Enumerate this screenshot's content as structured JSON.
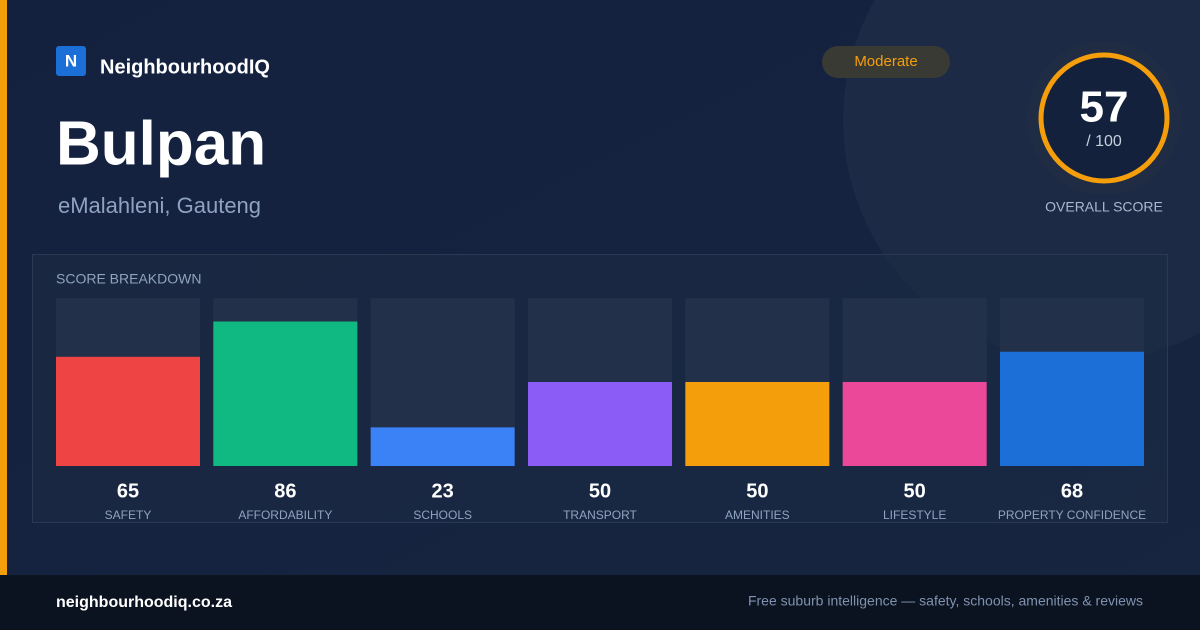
{
  "header": {
    "logo_letter": "N",
    "brand": "NeighbourhoodIQ",
    "title": "Bulpan",
    "location": "eMalahleni, Gauteng",
    "rating": "Moderate",
    "score": 57,
    "score_max": "/ 100",
    "score_label": "OVERALL SCORE"
  },
  "chart_data": {
    "type": "bar",
    "title": "SCORE BREAKDOWN",
    "categories": [
      "SAFETY",
      "AFFORDABILITY",
      "SCHOOLS",
      "TRANSPORT",
      "AMENITIES",
      "LIFESTYLE",
      "PROPERTY CONFIDENCE"
    ],
    "values": [
      65,
      86,
      23,
      50,
      50,
      50,
      68
    ],
    "colors": [
      "#ef4444",
      "#10b981",
      "#3b82f6",
      "#8b5cf6",
      "#f59e0b",
      "#ec4899",
      "#1d6fd8"
    ],
    "ylim": [
      0,
      100
    ]
  },
  "footer": {
    "site": "neighbourhoodiq.co.za",
    "tagline": "Free suburb intelligence — safety, schools, amenities & reviews"
  }
}
